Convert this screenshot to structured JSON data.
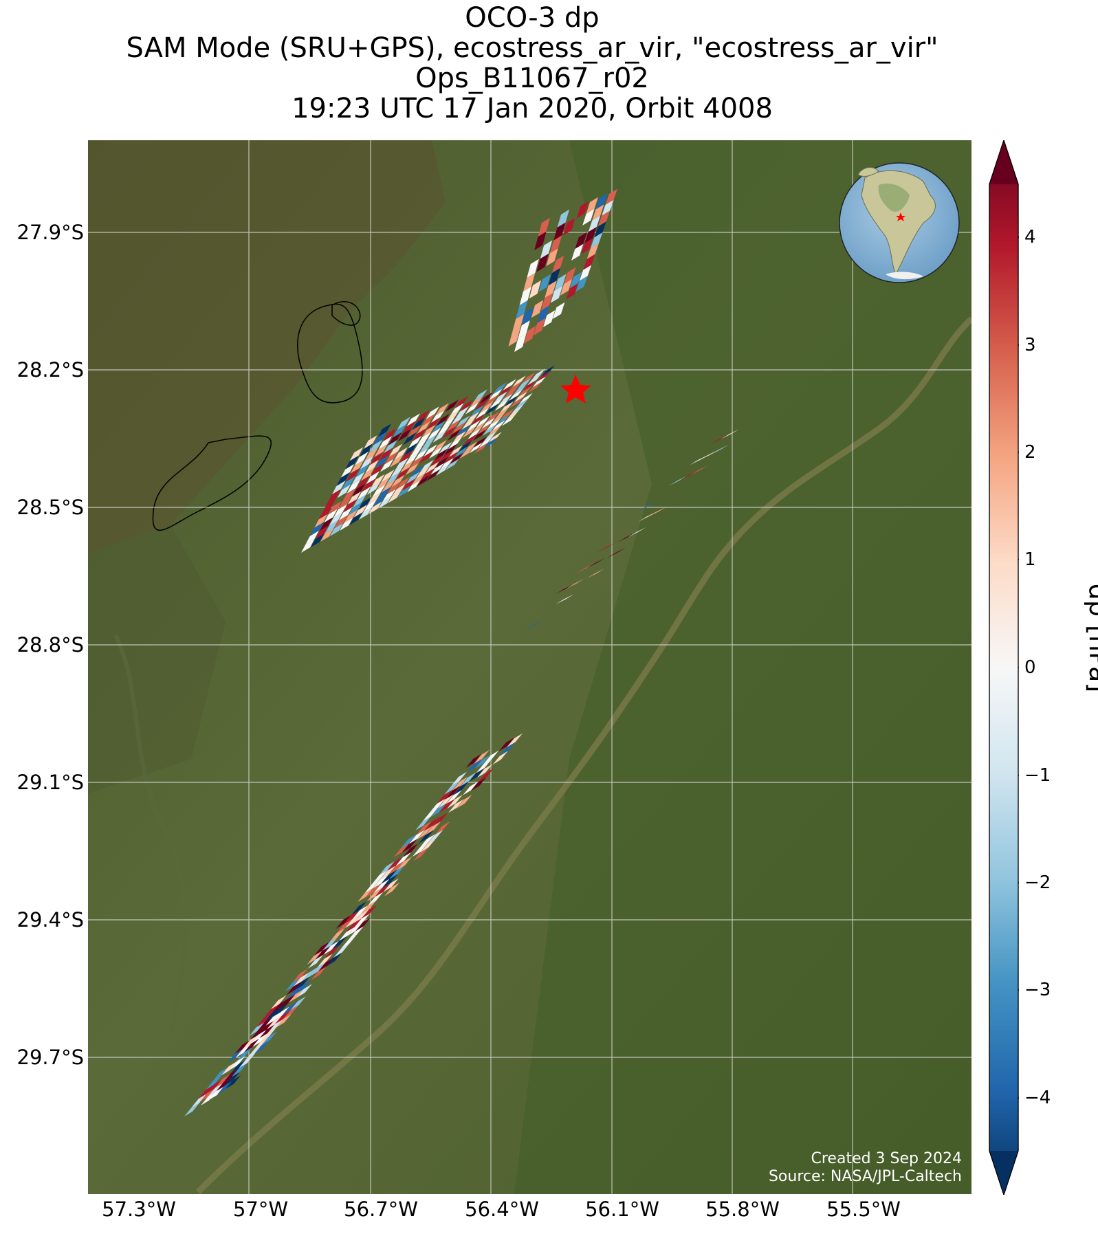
{
  "title": {
    "line1": "OCO-3 dp",
    "line2": "SAM Mode (SRU+GPS), ecostress_ar_vir, \"ecostress_ar_vir\"",
    "line3": "Ops_B11067_r02",
    "line4": "19:23 UTC 17 Jan 2020, Orbit 4008"
  },
  "map": {
    "lat_labels": [
      "27.9°S",
      "28.2°S",
      "28.5°S",
      "28.8°S",
      "29.1°S",
      "29.4°S",
      "29.7°S"
    ],
    "lon_labels": [
      "57.3°W",
      "57°W",
      "56.7°W",
      "56.4°W",
      "56.1°W",
      "55.8°W",
      "55.5°W"
    ],
    "credit_line1": "Created 3 Sep 2024",
    "credit_line2": "Source: NASA/JPL-Caltech",
    "target_marker": "red-star",
    "inset": "globe-south-america-with-red-star",
    "background": "satellite-imagery-green"
  },
  "colorbar": {
    "label": "dp [hPa]",
    "ticks": [
      "4",
      "3",
      "2",
      "1",
      "0",
      "−1",
      "−2",
      "−3",
      "−4"
    ],
    "tick_values": [
      4,
      3,
      2,
      1,
      0,
      -1,
      -2,
      -3,
      -4
    ],
    "range": [
      -4.5,
      4.5
    ],
    "colormap": "RdBu_r",
    "colors": [
      "#053061",
      "#2166ac",
      "#4393c3",
      "#92c5de",
      "#d1e5f0",
      "#f7f7f7",
      "#fddbc7",
      "#f4a582",
      "#d6604d",
      "#b2182b",
      "#67001f"
    ]
  }
}
